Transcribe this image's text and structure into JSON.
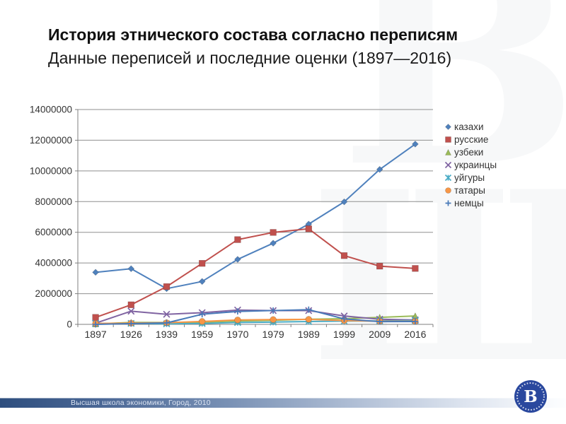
{
  "slide": {
    "title": "История этнического состава согласно переписям",
    "subtitle": "Данные переписей и последние оценки (1897—2016)",
    "footer": "Высшая школа экономики, Город, 2010",
    "logo_letter": "В",
    "watermark_letters": [
      "В",
      "Ш"
    ],
    "accent_color": "#2E4E7E"
  },
  "chart_data": {
    "type": "line",
    "title": "",
    "xlabel": "",
    "ylabel": "",
    "categories": [
      "1897",
      "1926",
      "1939",
      "1959",
      "1970",
      "1979",
      "1989",
      "1999",
      "2009",
      "2016"
    ],
    "ylim": [
      0,
      14000000
    ],
    "ytick_step": 2000000,
    "ytick_labels": [
      "0",
      "2000000",
      "4000000",
      "6000000",
      "8000000",
      "10000000",
      "12000000",
      "14000000"
    ],
    "grid": true,
    "legend_position": "right",
    "series": [
      {
        "name": "казахи",
        "color": "#4F81BD",
        "marker": "diamond",
        "values": [
          3392751,
          3627612,
          2327652,
          2794966,
          4234166,
          5289349,
          6534616,
          7985039,
          10096763,
          11748000
        ]
      },
      {
        "name": "русские",
        "color": "#C0504D",
        "marker": "square",
        "values": [
          454402,
          1275055,
          2458687,
          3974229,
          5521917,
          5991205,
          6227549,
          4479620,
          3793764,
          3644529
        ]
      },
      {
        "name": "узбеки",
        "color": "#9BBB59",
        "marker": "triangle",
        "values": [
          29564,
          129407,
          120655,
          136570,
          216340,
          263295,
          332017,
          370663,
          456997,
          548841
        ]
      },
      {
        "name": "украинцы",
        "color": "#8064A2",
        "marker": "x",
        "values": [
          79573,
          860201,
          658319,
          762131,
          933461,
          897964,
          896240,
          547054,
          333031,
          289724
        ]
      },
      {
        "name": "уйгуры",
        "color": "#4BACC6",
        "marker": "asterisk",
        "values": [
          55815,
          63432,
          35409,
          59840,
          120881,
          147943,
          185301,
          210365,
          224713,
          253557
        ]
      },
      {
        "name": "татары",
        "color": "#F79646",
        "marker": "circle",
        "values": [
          55984,
          79758,
          108127,
          191925,
          287712,
          312626,
          327982,
          248954,
          204229,
          202040
        ]
      },
      {
        "name": "немцы",
        "color": "#4879B8",
        "marker": "plus",
        "values": [
          2613,
          51094,
          92571,
          659751,
          839649,
          900207,
          957518,
          353441,
          178409,
          181958
        ]
      }
    ]
  }
}
